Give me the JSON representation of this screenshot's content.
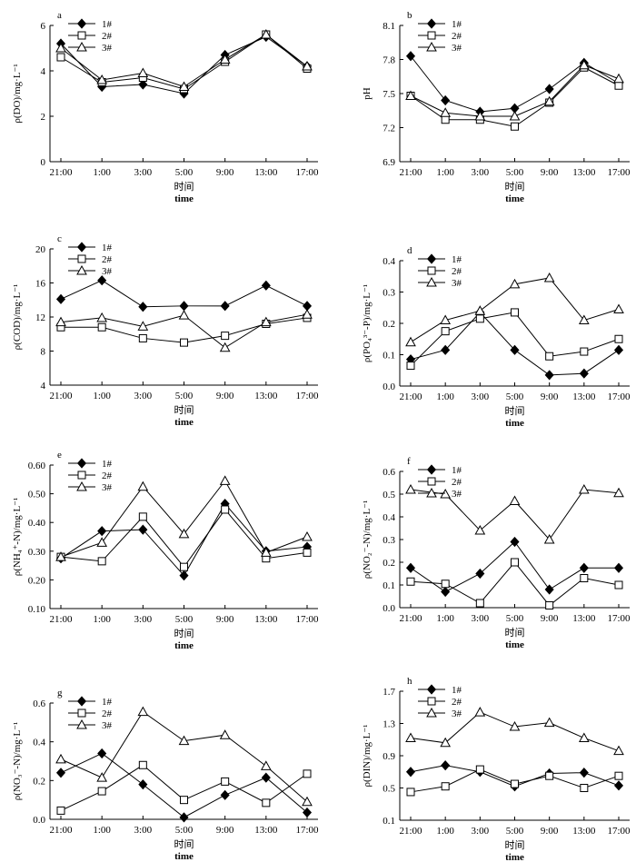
{
  "chart_data": [
    {
      "type": "line",
      "panel_label": "a",
      "categories": [
        "21:00",
        "1:00",
        "3:00",
        "5:00",
        "9:00",
        "13:00",
        "17:00"
      ],
      "ylim": [
        0,
        6
      ],
      "yticks": [
        "0",
        "2",
        "4",
        "6"
      ],
      "ylabel": "ρ(DO)/mg·L⁻¹",
      "xlabel_cn": "时间",
      "xlabel_en": "time",
      "legend": [
        "1#",
        "2#",
        "3#"
      ],
      "series": [
        {
          "name": "1#",
          "marker": "diamond",
          "values": [
            5.2,
            3.3,
            3.4,
            3.0,
            4.7,
            5.5,
            4.2
          ]
        },
        {
          "name": "2#",
          "marker": "square",
          "values": [
            4.6,
            3.5,
            3.7,
            3.2,
            4.4,
            5.6,
            4.1
          ]
        },
        {
          "name": "3#",
          "marker": "triangle",
          "values": [
            5.0,
            3.6,
            3.9,
            3.3,
            4.5,
            5.6,
            4.2
          ]
        }
      ]
    },
    {
      "type": "line",
      "panel_label": "b",
      "categories": [
        "21:00",
        "1:00",
        "3:00",
        "5:00",
        "9:00",
        "13:00",
        "17:00"
      ],
      "ylim": [
        6.9,
        8.1
      ],
      "yticks": [
        "6.9",
        "7.2",
        "7.5",
        "7.8",
        "8.1"
      ],
      "ylabel": "pH",
      "xlabel_cn": "时间",
      "xlabel_en": "time",
      "legend": [
        "1#",
        "2#",
        "3#"
      ],
      "series": [
        {
          "name": "1#",
          "marker": "diamond",
          "values": [
            7.83,
            7.44,
            7.34,
            7.37,
            7.54,
            7.77,
            7.59
          ]
        },
        {
          "name": "2#",
          "marker": "square",
          "values": [
            7.48,
            7.27,
            7.27,
            7.21,
            7.42,
            7.73,
            7.57
          ]
        },
        {
          "name": "3#",
          "marker": "triangle",
          "values": [
            7.48,
            7.33,
            7.3,
            7.3,
            7.43,
            7.75,
            7.63
          ]
        }
      ]
    },
    {
      "type": "line",
      "panel_label": "c",
      "categories": [
        "21:00",
        "1:00",
        "3:00",
        "5:00",
        "9:00",
        "13:00",
        "17:00"
      ],
      "ylim": [
        4,
        20
      ],
      "yticks": [
        "4",
        "8",
        "12",
        "16",
        "20"
      ],
      "ylabel": "ρ(COD)/mg·L⁻¹",
      "xlabel_cn": "时间",
      "xlabel_en": "time",
      "legend": [
        "1#",
        "2#",
        "3#"
      ],
      "series": [
        {
          "name": "1#",
          "marker": "diamond",
          "values": [
            14.1,
            16.3,
            13.2,
            13.3,
            13.3,
            15.7,
            13.3
          ]
        },
        {
          "name": "2#",
          "marker": "square",
          "values": [
            10.8,
            10.8,
            9.5,
            9.0,
            9.8,
            11.2,
            11.9
          ]
        },
        {
          "name": "3#",
          "marker": "triangle",
          "values": [
            11.4,
            11.9,
            10.9,
            12.2,
            8.4,
            11.4,
            12.3
          ]
        }
      ]
    },
    {
      "type": "line",
      "panel_label": "d",
      "categories": [
        "21:00",
        "1:00",
        "3:00",
        "5:00",
        "9:00",
        "13:00",
        "17:00"
      ],
      "ylim": [
        0,
        0.4
      ],
      "yticks": [
        "0.0",
        "0.1",
        "0.2",
        "0.3",
        "0.4"
      ],
      "ylabel": "ρ(PO₄³⁻-P)/mg·L⁻¹",
      "xlabel_cn": "时间",
      "xlabel_en": "time",
      "legend": [
        "1#",
        "2#",
        "3#"
      ],
      "series": [
        {
          "name": "1#",
          "marker": "diamond",
          "values": [
            0.085,
            0.115,
            0.235,
            0.115,
            0.035,
            0.04,
            0.115
          ]
        },
        {
          "name": "2#",
          "marker": "square",
          "values": [
            0.065,
            0.175,
            0.215,
            0.235,
            0.095,
            0.11,
            0.15
          ]
        },
        {
          "name": "3#",
          "marker": "triangle",
          "values": [
            0.14,
            0.21,
            0.24,
            0.325,
            0.345,
            0.21,
            0.245
          ]
        }
      ]
    },
    {
      "type": "line",
      "panel_label": "e",
      "categories": [
        "21:00",
        "1:00",
        "3:00",
        "5:00",
        "9:00",
        "13:00",
        "17:00"
      ],
      "ylim": [
        0.1,
        0.6
      ],
      "yticks": [
        "0.10",
        "0.20",
        "0.30",
        "0.40",
        "0.50",
        "0.60"
      ],
      "ylabel": "ρ(NH₄⁺-N)/mg·L⁻¹",
      "xlabel_cn": "时间",
      "xlabel_en": "time",
      "legend": [
        "1#",
        "2#",
        "3#"
      ],
      "series": [
        {
          "name": "1#",
          "marker": "diamond",
          "values": [
            0.275,
            0.37,
            0.375,
            0.215,
            0.465,
            0.3,
            0.315
          ]
        },
        {
          "name": "2#",
          "marker": "square",
          "values": [
            0.28,
            0.265,
            0.42,
            0.245,
            0.445,
            0.275,
            0.295
          ]
        },
        {
          "name": "3#",
          "marker": "triangle",
          "values": [
            0.28,
            0.33,
            0.525,
            0.36,
            0.545,
            0.295,
            0.35
          ]
        }
      ]
    },
    {
      "type": "line",
      "panel_label": "f",
      "categories": [
        "21:00",
        "1:00",
        "3:00",
        "5:00",
        "9:00",
        "13:00",
        "17:00"
      ],
      "ylim": [
        0,
        0.6
      ],
      "yticks": [
        "0.0",
        "0.1",
        "0.2",
        "0.3",
        "0.4",
        "0.5",
        "0.6"
      ],
      "ylabel": "ρ(NO₂⁻-N)/mg·L⁻¹",
      "xlabel_cn": "时间",
      "xlabel_en": "time",
      "legend": [
        "1#",
        "2#",
        "3#"
      ],
      "series": [
        {
          "name": "1#",
          "marker": "diamond",
          "values": [
            0.175,
            0.07,
            0.15,
            0.29,
            0.08,
            0.175,
            0.175
          ]
        },
        {
          "name": "2#",
          "marker": "square",
          "values": [
            0.115,
            0.105,
            0.02,
            0.2,
            0.01,
            0.13,
            0.1
          ]
        },
        {
          "name": "3#",
          "marker": "triangle",
          "values": [
            0.52,
            0.5,
            0.34,
            0.47,
            0.3,
            0.52,
            0.505
          ]
        }
      ]
    },
    {
      "type": "line",
      "panel_label": "g",
      "categories": [
        "21:00",
        "1:00",
        "3:00",
        "5:00",
        "9:00",
        "13:00",
        "17:00"
      ],
      "ylim": [
        0,
        0.6
      ],
      "yticks": [
        "0.0",
        "0.2",
        "0.4",
        "0.6"
      ],
      "ylabel": "ρ(NO₃⁻-N)/mg·L⁻¹",
      "xlabel_cn": "时间",
      "xlabel_en": "time",
      "legend": [
        "1#",
        "2#",
        "3#"
      ],
      "series": [
        {
          "name": "1#",
          "marker": "diamond",
          "values": [
            0.24,
            0.34,
            0.18,
            0.01,
            0.125,
            0.215,
            0.035
          ]
        },
        {
          "name": "2#",
          "marker": "square",
          "values": [
            0.045,
            0.145,
            0.28,
            0.1,
            0.195,
            0.085,
            0.235
          ]
        },
        {
          "name": "3#",
          "marker": "triangle",
          "values": [
            0.31,
            0.215,
            0.555,
            0.405,
            0.435,
            0.275,
            0.09
          ]
        }
      ]
    },
    {
      "type": "line",
      "panel_label": "h",
      "categories": [
        "21:00",
        "1:00",
        "3:00",
        "5:00",
        "9:00",
        "13:00",
        "17:00"
      ],
      "ylim": [
        0.1,
        1.7
      ],
      "yticks": [
        "0.1",
        "0.5",
        "0.9",
        "1.3",
        "1.7"
      ],
      "ylabel": "ρ(DIN)/mg·L⁻¹",
      "xlabel_cn": "时间",
      "xlabel_en": "time",
      "legend": [
        "1#",
        "2#",
        "3#"
      ],
      "series": [
        {
          "name": "1#",
          "marker": "diamond",
          "values": [
            0.7,
            0.78,
            0.7,
            0.52,
            0.68,
            0.69,
            0.53
          ]
        },
        {
          "name": "2#",
          "marker": "square",
          "values": [
            0.45,
            0.52,
            0.73,
            0.55,
            0.65,
            0.5,
            0.65
          ]
        },
        {
          "name": "3#",
          "marker": "triangle",
          "values": [
            1.12,
            1.06,
            1.44,
            1.26,
            1.31,
            1.12,
            0.96
          ]
        }
      ]
    }
  ]
}
